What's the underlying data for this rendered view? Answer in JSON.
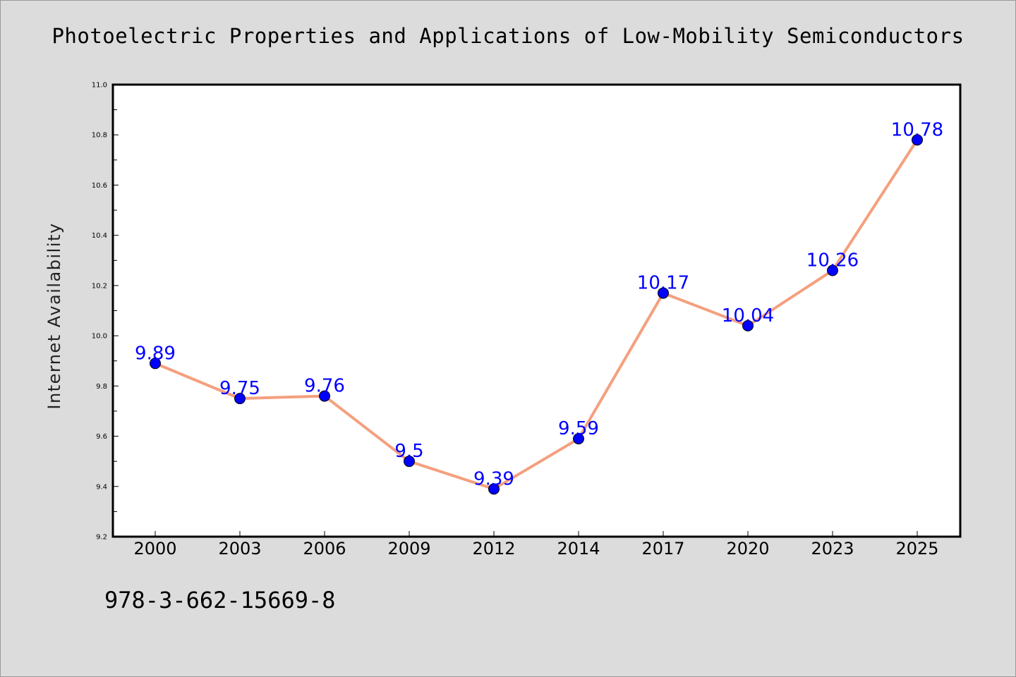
{
  "chart_data": {
    "type": "line",
    "title": "Photoelectric Properties and Applications of Low-Mobility Semiconductors",
    "xlabel": "",
    "ylabel": "Internet Availability",
    "categories": [
      "2000",
      "2003",
      "2006",
      "2009",
      "2012",
      "2014",
      "2017",
      "2020",
      "2023",
      "2025"
    ],
    "series": [
      {
        "values": [
          9.89,
          9.75,
          9.76,
          9.5,
          9.39,
          9.59,
          10.17,
          10.04,
          10.26,
          10.78
        ],
        "line_color": "#f4a07e",
        "marker_color": "#0000ff"
      }
    ],
    "data_labels": [
      "9.89",
      "9.75",
      "9.76",
      "9.5",
      "9.39",
      "9.59",
      "10.17",
      "10.04",
      "10.26",
      "10.78"
    ],
    "data_label_color": "#0000ff",
    "ylim": [
      9.2,
      11.0
    ],
    "yticks": [
      9.2,
      9.4,
      9.6,
      9.8,
      10.0,
      10.2,
      10.4,
      10.6,
      10.8,
      11.0
    ],
    "ytick_labels": [
      "9.2",
      "9.4",
      "9.6",
      "9.8",
      "10.0",
      "10.2",
      "10.4",
      "10.6",
      "10.8",
      "11.0"
    ],
    "grid": false,
    "legend": "none"
  },
  "footer": {
    "isbn": "978-3-662-15669-8"
  },
  "colors": {
    "background": "#dcdcdc",
    "plot_background": "#ffffff"
  }
}
